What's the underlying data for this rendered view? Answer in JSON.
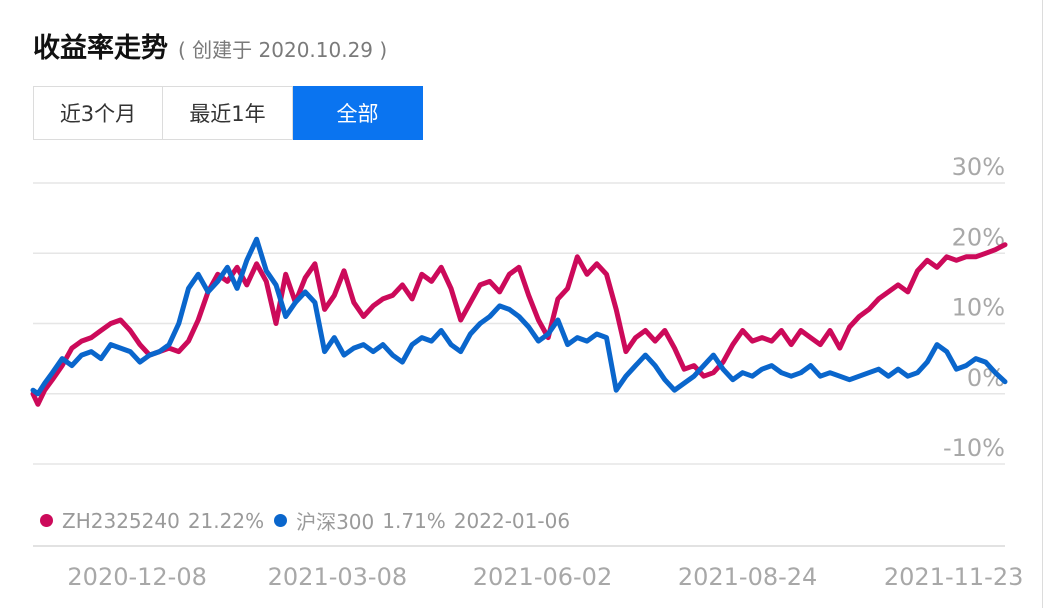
{
  "header": {
    "title": "收益率走势",
    "subtitle": "( 创建于 2020.10.29 )"
  },
  "tabs": [
    {
      "label": "近3个月",
      "active": false
    },
    {
      "label": "最近1年",
      "active": false
    },
    {
      "label": "全部",
      "active": true
    }
  ],
  "legend": {
    "items": [
      {
        "name": "ZH2325240",
        "value": "21.22%",
        "color": "#cc0a5a"
      },
      {
        "name": "沪深300",
        "value": "1.71%",
        "color": "#0a66cc"
      }
    ],
    "date": "2022-01-06"
  },
  "chart_data": {
    "type": "line",
    "ylim": [
      -10,
      30
    ],
    "y_ticks": [
      30,
      20,
      10,
      0,
      -10
    ],
    "y_tick_labels": [
      "30%",
      "20%",
      "10%",
      "0%",
      "-10%"
    ],
    "x_tick_labels": [
      "2020-12-08",
      "2021-03-08",
      "2021-06-02",
      "2021-08-24",
      "2021-11-23"
    ],
    "x_tick_positions": [
      0.03,
      0.236,
      0.447,
      0.658,
      0.87
    ],
    "grid": true,
    "series": [
      {
        "name": "ZH2325240",
        "color": "#cc0a5a",
        "x": [
          0,
          0.005,
          0.012,
          0.02,
          0.03,
          0.04,
          0.05,
          0.06,
          0.07,
          0.08,
          0.09,
          0.1,
          0.11,
          0.12,
          0.13,
          0.14,
          0.15,
          0.16,
          0.17,
          0.18,
          0.19,
          0.2,
          0.21,
          0.22,
          0.23,
          0.24,
          0.25,
          0.26,
          0.27,
          0.28,
          0.29,
          0.3,
          0.31,
          0.32,
          0.33,
          0.34,
          0.35,
          0.36,
          0.37,
          0.38,
          0.39,
          0.4,
          0.41,
          0.42,
          0.43,
          0.44,
          0.45,
          0.46,
          0.47,
          0.48,
          0.49,
          0.5,
          0.51,
          0.52,
          0.53,
          0.54,
          0.55,
          0.56,
          0.57,
          0.58,
          0.59,
          0.6,
          0.61,
          0.62,
          0.63,
          0.64,
          0.65,
          0.66,
          0.67,
          0.68,
          0.69,
          0.7,
          0.71,
          0.72,
          0.73,
          0.74,
          0.75,
          0.76,
          0.77,
          0.78,
          0.79,
          0.8,
          0.81,
          0.82,
          0.83,
          0.84,
          0.85,
          0.86,
          0.87,
          0.88,
          0.89,
          0.9,
          0.91,
          0.92,
          0.93,
          0.94,
          0.95,
          0.96,
          0.97,
          0.98,
          0.99,
          1.0
        ],
        "values": [
          0,
          -1.5,
          0.5,
          2,
          4,
          6.5,
          7.5,
          8,
          9,
          10,
          10.5,
          9,
          7,
          5.5,
          6,
          6.5,
          6,
          7.5,
          10.5,
          14.5,
          17,
          16,
          18,
          15.5,
          18.5,
          16,
          10,
          17,
          13,
          16.5,
          18.5,
          12,
          14,
          17.5,
          13,
          11,
          12.5,
          13.5,
          14,
          15.5,
          13.5,
          17,
          16,
          18,
          15,
          10.5,
          13,
          15.5,
          16,
          14.5,
          17,
          18,
          14,
          10.5,
          8,
          13.5,
          15,
          19.5,
          17,
          18.5,
          17,
          12,
          6,
          8,
          9,
          7.5,
          9,
          6.5,
          3.5,
          4,
          2.5,
          3,
          4.5,
          7,
          9,
          7.5,
          8,
          7.5,
          9,
          7,
          9,
          8,
          7,
          9,
          6.5,
          9.5,
          11,
          12,
          13.5,
          14.5,
          15.5,
          14.5,
          17.5,
          19,
          18,
          19.5,
          19,
          19.5,
          19.5,
          20,
          20.5,
          21.22
        ]
      },
      {
        "name": "沪深300",
        "color": "#0a66cc",
        "x": [
          0,
          0.005,
          0.012,
          0.02,
          0.03,
          0.04,
          0.05,
          0.06,
          0.07,
          0.08,
          0.09,
          0.1,
          0.11,
          0.12,
          0.13,
          0.14,
          0.15,
          0.16,
          0.17,
          0.18,
          0.19,
          0.2,
          0.21,
          0.22,
          0.23,
          0.24,
          0.25,
          0.26,
          0.27,
          0.28,
          0.29,
          0.3,
          0.31,
          0.32,
          0.33,
          0.34,
          0.35,
          0.36,
          0.37,
          0.38,
          0.39,
          0.4,
          0.41,
          0.42,
          0.43,
          0.44,
          0.45,
          0.46,
          0.47,
          0.48,
          0.49,
          0.5,
          0.51,
          0.52,
          0.53,
          0.54,
          0.55,
          0.56,
          0.57,
          0.58,
          0.59,
          0.6,
          0.61,
          0.62,
          0.63,
          0.64,
          0.65,
          0.66,
          0.67,
          0.68,
          0.69,
          0.7,
          0.71,
          0.72,
          0.73,
          0.74,
          0.75,
          0.76,
          0.77,
          0.78,
          0.79,
          0.8,
          0.81,
          0.82,
          0.83,
          0.84,
          0.85,
          0.86,
          0.87,
          0.88,
          0.89,
          0.9,
          0.91,
          0.92,
          0.93,
          0.94,
          0.95,
          0.96,
          0.97,
          0.98,
          0.99,
          1.0
        ],
        "values": [
          0.5,
          0,
          1.5,
          3,
          5,
          4,
          5.5,
          6,
          5,
          7,
          6.5,
          6,
          4.5,
          5.5,
          6,
          7,
          10,
          15,
          17,
          14.5,
          16,
          18,
          15,
          19,
          22,
          17.5,
          15.5,
          11,
          13,
          14.5,
          13,
          6,
          8,
          5.5,
          6.5,
          7,
          6,
          7,
          5.5,
          4.5,
          7,
          8,
          7.5,
          9,
          7,
          6,
          8.5,
          10,
          11,
          12.5,
          12,
          11,
          9.5,
          7.5,
          8.5,
          10.5,
          7,
          8,
          7.5,
          8.5,
          8,
          0.5,
          2.5,
          4,
          5.5,
          4,
          2,
          0.5,
          1.5,
          2.5,
          4,
          5.5,
          3.5,
          2,
          3,
          2.5,
          3.5,
          4,
          3,
          2.5,
          3,
          4,
          2.5,
          3,
          2.5,
          2,
          2.5,
          3,
          3.5,
          2.5,
          3.5,
          2.5,
          3,
          4.5,
          7,
          6,
          3.5,
          4,
          5,
          4.5,
          3,
          1.71
        ]
      }
    ]
  }
}
